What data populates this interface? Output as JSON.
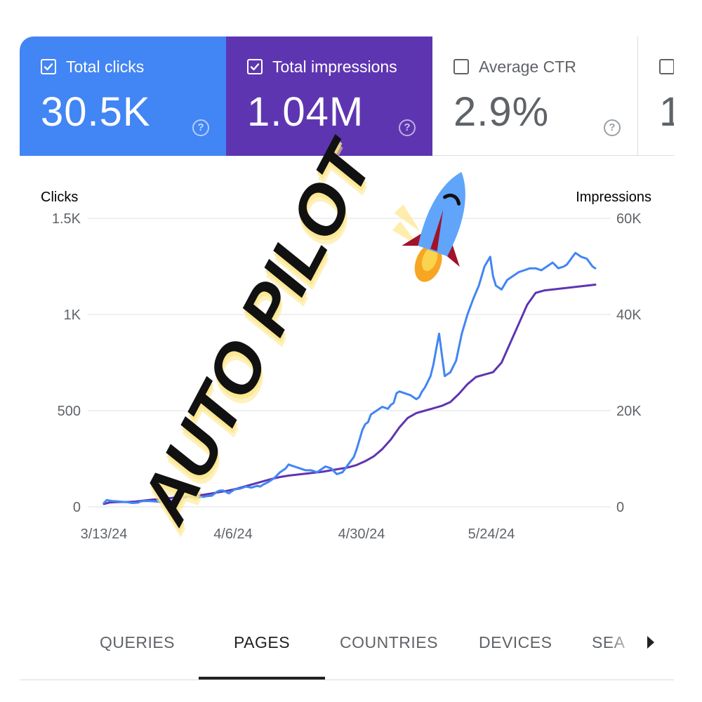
{
  "metrics": [
    {
      "label": "Total clicks",
      "value": "30.5K",
      "checked": true,
      "bg": "#4285f4",
      "fg": "#ffffff"
    },
    {
      "label": "Total impressions",
      "value": "1.04M",
      "checked": true,
      "bg": "#5e35b1",
      "fg": "#ffffff"
    },
    {
      "label": "Average CTR",
      "value": "2.9%",
      "checked": false,
      "bg": "#ffffff",
      "fg": "#5f6368"
    },
    {
      "label": "",
      "value": "1",
      "checked": false,
      "bg": "#ffffff",
      "fg": "#5f6368"
    }
  ],
  "help_glyph": "?",
  "overlay": {
    "text": "AUTO PILOT",
    "icon": "rocket-icon"
  },
  "colors": {
    "clicks": "#4285f4",
    "impressions": "#5e35b1",
    "grid": "#e8eaed",
    "axis_text": "#5f6368",
    "highlight": "#fde68a"
  },
  "chart_data": {
    "type": "line",
    "x_tick_labels": [
      "3/13/24",
      "4/6/24",
      "4/30/24",
      "5/24/24"
    ],
    "x_tick_index": [
      0,
      24,
      48,
      72
    ],
    "left_axis": {
      "title": "Clicks",
      "min": 0,
      "max": 1500,
      "ticks": [
        0,
        500,
        1000,
        1500
      ],
      "tick_labels": [
        "0",
        "500",
        "1K",
        "1.5K"
      ]
    },
    "right_axis": {
      "title": "Impressions",
      "min": 0,
      "max": 60000,
      "ticks": [
        0,
        20000,
        40000,
        60000
      ],
      "tick_labels": [
        "0",
        "20K",
        "40K",
        "60K"
      ]
    },
    "grid": true,
    "series": [
      {
        "name": "Clicks",
        "axis": "left",
        "x": [
          0,
          1,
          3,
          5,
          7,
          8,
          10,
          12,
          13,
          14,
          16,
          18,
          20,
          22,
          24,
          26,
          28,
          30,
          32,
          33,
          34,
          35,
          36,
          38,
          40,
          41,
          42,
          44,
          46,
          48,
          50,
          52,
          54,
          55,
          56,
          58,
          60,
          62,
          64,
          65,
          67,
          69,
          71,
          73,
          75,
          77,
          78,
          80,
          82,
          84,
          86,
          88,
          89,
          90,
          91,
          92,
          93,
          94,
          96,
          98,
          100,
          101,
          102,
          103,
          104,
          106,
          108,
          110,
          111,
          112,
          113,
          114,
          115,
          116,
          117,
          118,
          120,
          122,
          124,
          126,
          128,
          130,
          132,
          134,
          136,
          137,
          138,
          140,
          142,
          144,
          146,
          148,
          150,
          152,
          154,
          156,
          158,
          160,
          162,
          163,
          164,
          165,
          166,
          168,
          170,
          172,
          173
        ],
        "y": [
          20,
          35,
          30,
          28,
          25,
          25,
          20,
          22,
          28,
          30,
          30,
          28,
          25,
          28,
          32,
          40,
          50,
          55,
          50,
          48,
          52,
          52,
          55,
          58,
          80,
          85,
          85,
          70,
          90,
          95,
          105,
          100,
          110,
          105,
          115,
          130,
          150,
          180,
          200,
          220,
          210,
          200,
          190,
          190,
          180,
          200,
          210,
          200,
          170,
          180,
          220,
          260,
          300,
          350,
          400,
          430,
          440,
          480,
          500,
          520,
          510,
          530,
          540,
          590,
          600,
          590,
          580,
          560,
          570,
          600,
          620,
          650,
          680,
          740,
          820,
          900,
          680,
          700,
          760,
          900,
          1000,
          1080,
          1150,
          1250,
          1300,
          1200,
          1150,
          1130,
          1180,
          1200,
          1220,
          1230,
          1240,
          1240,
          1230,
          1250,
          1270,
          1240,
          1250,
          1260,
          1280,
          1300,
          1320,
          1300,
          1290,
          1250,
          1240
        ]
      },
      {
        "name": "Impressions",
        "axis": "right",
        "x": [
          0,
          2,
          5,
          8,
          11,
          14,
          17,
          20,
          23,
          26,
          29,
          32,
          35,
          38,
          41,
          44,
          47,
          50,
          53,
          56,
          59,
          62,
          65,
          68,
          71,
          74,
          77,
          80,
          83,
          86,
          89,
          92,
          95,
          98,
          101,
          104,
          107,
          110,
          113,
          116,
          119,
          122,
          125,
          128,
          131,
          134,
          137,
          140,
          143,
          146,
          149,
          152,
          155,
          158,
          161,
          164,
          167,
          170,
          173
        ],
        "y": [
          600,
          900,
          1000,
          1000,
          1100,
          1300,
          1500,
          1600,
          1800,
          2000,
          2100,
          2300,
          2500,
          2800,
          3100,
          3400,
          3800,
          4300,
          4800,
          5300,
          5800,
          6200,
          6500,
          6700,
          6900,
          7100,
          7300,
          7600,
          7900,
          8200,
          8700,
          9500,
          10500,
          12000,
          14000,
          16500,
          18500,
          19500,
          20000,
          20500,
          21000,
          21800,
          23500,
          25500,
          27000,
          27500,
          28000,
          30000,
          34000,
          38000,
          42000,
          44500,
          45000,
          45200,
          45400,
          45600,
          45800,
          46000,
          46200
        ]
      }
    ]
  }
}
